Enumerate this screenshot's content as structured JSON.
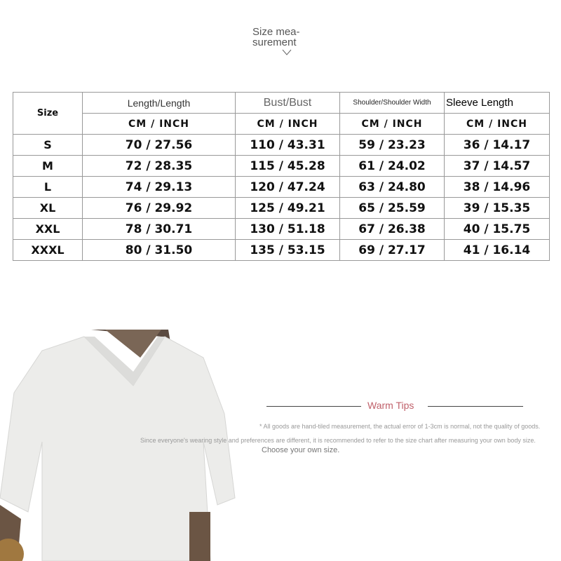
{
  "title": "Size mea- surement",
  "title_lines": [
    "Size mea-",
    "surement"
  ],
  "table": {
    "size_header": "Size",
    "columns": [
      "Length/Length",
      "Bust/Bust",
      "Shoulder/Shoulder Width",
      "Sleeve Length"
    ],
    "unit_label": "CM  /  INCH",
    "rows": [
      {
        "size": "S",
        "values": [
          "70 / 27.56",
          "110 / 43.31",
          "59 / 23.23",
          "36 / 14.17"
        ]
      },
      {
        "size": "M",
        "values": [
          "72 / 28.35",
          "115 / 45.28",
          "61 / 24.02",
          "37 / 14.57"
        ]
      },
      {
        "size": "L",
        "values": [
          "74 / 29.13",
          "120 / 47.24",
          "63 / 24.80",
          "38 / 14.96"
        ]
      },
      {
        "size": "XL",
        "values": [
          "76 / 29.92",
          "125 / 49.21",
          "65 / 25.59",
          "39 / 15.35"
        ]
      },
      {
        "size": "XXL",
        "values": [
          "78 / 30.71",
          "130 / 51.18",
          "67 / 26.38",
          "40 / 15.75"
        ]
      },
      {
        "size": "XXXL",
        "values": [
          "80 / 31.50",
          "135 / 53.15",
          "69 / 27.17",
          "41 / 16.14"
        ]
      }
    ]
  },
  "tips": {
    "heading": "Warm Tips",
    "heading_color": "#c0616b",
    "line1": "* All goods are hand-tiled measurement, the actual error of 1-3cm is normal, not the quality of goods.",
    "line2": "Since everyone's wearing style and preferences are different, it is recommended to refer to the size chart after measuring your own body size.",
    "line3": "Choose your own size."
  }
}
